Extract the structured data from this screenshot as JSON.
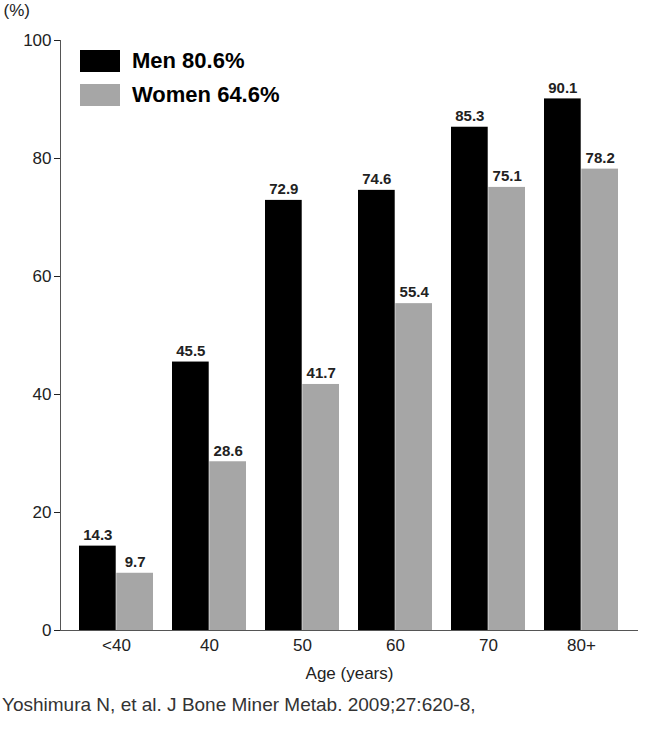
{
  "chart_data": {
    "type": "bar",
    "categories": [
      "<40",
      "40",
      "50",
      "60",
      "70",
      "80+"
    ],
    "series": [
      {
        "name": "Men 80.6%",
        "color": "#000000",
        "values": [
          14.3,
          45.5,
          72.9,
          74.6,
          85.3,
          90.1
        ]
      },
      {
        "name": "Women 64.6%",
        "color": "#a6a6a6",
        "values": [
          9.7,
          28.6,
          41.7,
          55.4,
          75.1,
          78.2
        ]
      }
    ],
    "x_label": "Age (years)",
    "y_label": "(%)",
    "ylim": [
      0,
      100
    ],
    "yticks": [
      0,
      20,
      40,
      60,
      80,
      100
    ],
    "grid": false,
    "legend": "top-left",
    "data_labels": true,
    "caption": "Yoshimura N, et al. J Bone Miner Metab. 2009;27:620-8,"
  }
}
